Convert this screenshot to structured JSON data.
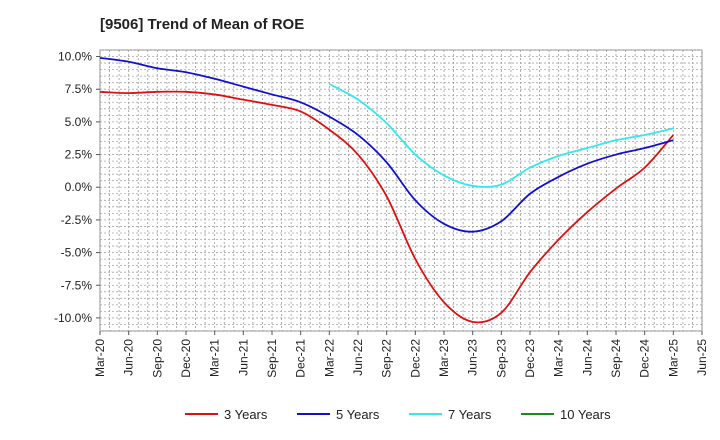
{
  "chart_data": {
    "type": "line",
    "title": "[9506]  Trend of Mean of ROE",
    "xlabel": "",
    "ylabel": "",
    "ylim": [
      -11.0,
      10.5
    ],
    "yticks": [
      {
        "value": 10,
        "label": "10.0%"
      },
      {
        "value": 7.5,
        "label": "7.5%"
      },
      {
        "value": 5,
        "label": "5.0%"
      },
      {
        "value": 2.5,
        "label": "2.5%"
      },
      {
        "value": 0,
        "label": "0.0%"
      },
      {
        "value": -2.5,
        "label": "-2.5%"
      },
      {
        "value": -5,
        "label": "-5.0%"
      },
      {
        "value": -7.5,
        "label": "-7.5%"
      },
      {
        "value": -10,
        "label": "-10.0%"
      }
    ],
    "x_categories": [
      "Mar-20",
      "Jun-20",
      "Sep-20",
      "Dec-20",
      "Mar-21",
      "Jun-21",
      "Sep-21",
      "Dec-21",
      "Mar-22",
      "Jun-22",
      "Sep-22",
      "Dec-22",
      "Mar-23",
      "Jun-23",
      "Sep-23",
      "Dec-23",
      "Mar-24",
      "Jun-24",
      "Sep-24",
      "Dec-24",
      "Mar-25",
      "Jun-25"
    ],
    "legend_position": "bottom",
    "grid": true,
    "series": [
      {
        "name": "3 Years",
        "color": "#dd1111",
        "points": [
          [
            0,
            7.3
          ],
          [
            1,
            7.2
          ],
          [
            2,
            7.3
          ],
          [
            3,
            7.3
          ],
          [
            4,
            7.1
          ],
          [
            5,
            6.7
          ],
          [
            6,
            6.3
          ],
          [
            7,
            5.8
          ],
          [
            8,
            4.4
          ],
          [
            9,
            2.5
          ],
          [
            10,
            -0.7
          ],
          [
            11,
            -5.5
          ],
          [
            12,
            -8.8
          ],
          [
            13,
            -10.3
          ],
          [
            14,
            -9.6
          ],
          [
            15,
            -6.5
          ],
          [
            16,
            -4.0
          ],
          [
            17,
            -1.9
          ],
          [
            18,
            -0.1
          ],
          [
            19,
            1.5
          ],
          [
            20,
            4.0
          ]
        ]
      },
      {
        "name": "5 Years",
        "color": "#1111cc",
        "points": [
          [
            0,
            9.9
          ],
          [
            1,
            9.6
          ],
          [
            2,
            9.1
          ],
          [
            3,
            8.8
          ],
          [
            4,
            8.3
          ],
          [
            5,
            7.7
          ],
          [
            6,
            7.1
          ],
          [
            7,
            6.5
          ],
          [
            8,
            5.4
          ],
          [
            9,
            4.0
          ],
          [
            10,
            1.9
          ],
          [
            11,
            -1.0
          ],
          [
            12,
            -2.8
          ],
          [
            13,
            -3.4
          ],
          [
            14,
            -2.6
          ],
          [
            15,
            -0.5
          ],
          [
            16,
            0.8
          ],
          [
            17,
            1.8
          ],
          [
            18,
            2.5
          ],
          [
            19,
            3.0
          ],
          [
            20,
            3.6
          ]
        ]
      },
      {
        "name": "7 Years",
        "color": "#33e8ee",
        "points": [
          [
            8,
            7.9
          ],
          [
            9,
            6.7
          ],
          [
            10,
            4.9
          ],
          [
            11,
            2.5
          ],
          [
            12,
            0.9
          ],
          [
            13,
            0.1
          ],
          [
            14,
            0.2
          ],
          [
            15,
            1.5
          ],
          [
            16,
            2.4
          ],
          [
            17,
            3.0
          ],
          [
            18,
            3.6
          ],
          [
            19,
            4.0
          ],
          [
            20,
            4.5
          ]
        ]
      },
      {
        "name": "10 Years",
        "color": "#1a8a1a",
        "points": []
      }
    ]
  }
}
